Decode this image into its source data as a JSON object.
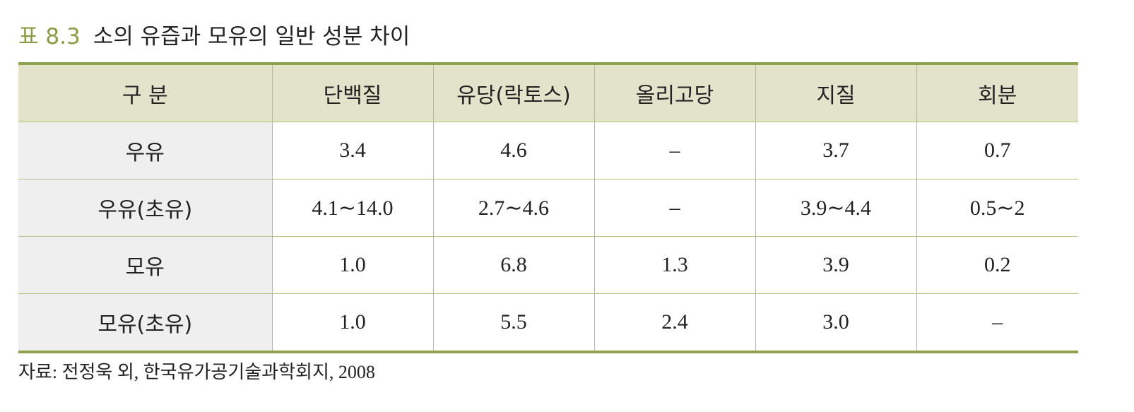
{
  "caption": {
    "label": "표 8.3",
    "title": "소의 유즙과 모유의 일반 성분 차이"
  },
  "table": {
    "header": [
      "구 분",
      "단백질",
      "유당(락토스)",
      "올리고당",
      "지질",
      "회분"
    ],
    "rows": [
      [
        "우유",
        "3.4",
        "4.6",
        "–",
        "3.7",
        "0.7"
      ],
      [
        "우유(초유)",
        "4.1∼14.0",
        "2.7∼4.6",
        "–",
        "3.9∼4.4",
        "0.5∼2"
      ],
      [
        "모유",
        "1.0",
        "6.8",
        "1.3",
        "3.9",
        "0.2"
      ],
      [
        "모유(초유)",
        "1.0",
        "5.5",
        "2.4",
        "3.0",
        "–"
      ]
    ]
  },
  "source": "자료: 전정욱 외, 한국유가공기술과학회지, 2008"
}
